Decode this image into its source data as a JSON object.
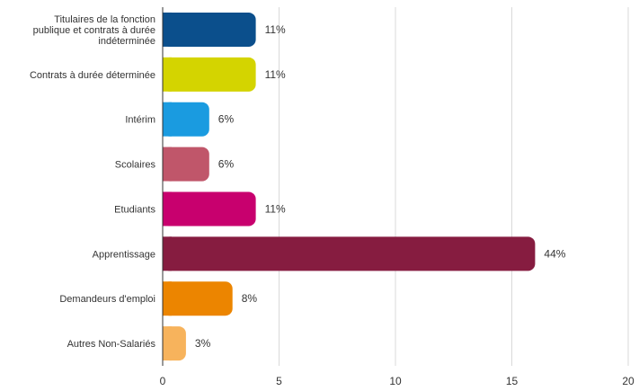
{
  "chart_data": {
    "type": "bar",
    "orientation": "horizontal",
    "categories": [
      [
        "Titulaires de la fonction",
        "publique et contrats à durée",
        "indéterminée"
      ],
      [
        "Contrats à durée déterminée"
      ],
      [
        "Intérim"
      ],
      [
        "Scolaires"
      ],
      [
        "Etudiants"
      ],
      [
        "Apprentissage"
      ],
      [
        "Demandeurs d'emploi"
      ],
      [
        "Autres Non-Salariés"
      ]
    ],
    "values": [
      4,
      4,
      2,
      2,
      4,
      16,
      3,
      1
    ],
    "value_labels": [
      "11%",
      "11%",
      "6%",
      "6%",
      "11%",
      "44%",
      "8%",
      "3%"
    ],
    "colors": [
      "#0b4f8c",
      "#d4d400",
      "#1a9be0",
      "#c0566a",
      "#c8006e",
      "#861c40",
      "#ec8500",
      "#f7b35c"
    ],
    "xlim": [
      0,
      20
    ],
    "xticks": [
      0,
      5,
      10,
      15,
      20
    ],
    "grid": true,
    "legend": "none"
  }
}
